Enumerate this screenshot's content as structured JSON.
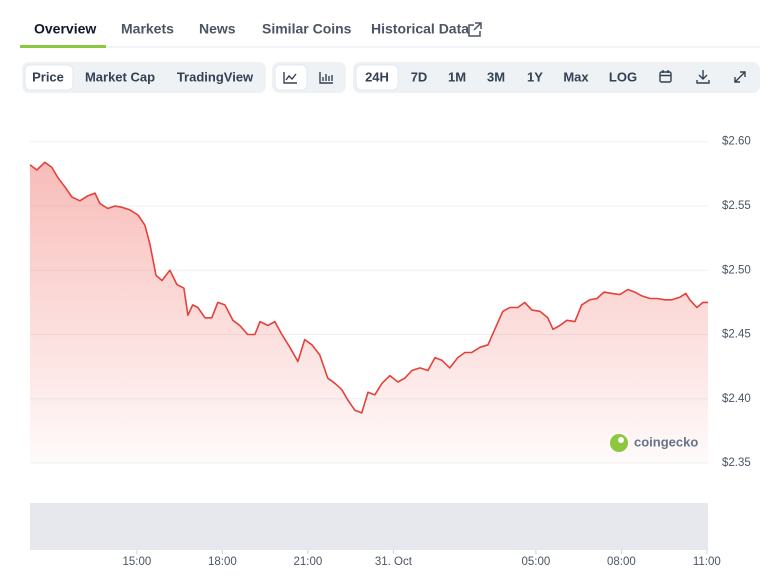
{
  "tabs": [
    "Overview",
    "Markets",
    "News",
    "Similar Coins",
    "Historical Data"
  ],
  "toolbar": {
    "views": [
      "Price",
      "Market Cap",
      "TradingView"
    ],
    "ranges": [
      "24H",
      "7D",
      "1M",
      "3M",
      "1Y",
      "Max",
      "LOG"
    ]
  },
  "chart_data": {
    "type": "area",
    "color": "#e5413a",
    "watermark": "coingecko",
    "x": [
      11.25,
      11.49,
      11.77,
      12.02,
      12.23,
      12.47,
      12.72,
      13.0,
      13.28,
      13.53,
      13.7,
      13.98,
      14.23,
      14.47,
      14.75,
      15.04,
      15.28,
      15.46,
      15.67,
      15.88,
      16.16,
      16.4,
      16.65,
      16.79,
      16.96,
      17.14,
      17.39,
      17.63,
      17.84,
      18.09,
      18.37,
      18.61,
      18.89,
      19.14,
      19.32,
      19.6,
      19.84,
      20.09,
      20.37,
      20.65,
      20.89,
      21.14,
      21.42,
      21.7,
      21.95,
      22.19,
      22.4,
      22.65,
      22.89,
      23.11,
      23.35,
      23.6,
      23.88,
      24.16,
      24.4,
      24.65,
      24.93,
      25.21,
      25.46,
      25.7,
      25.98,
      26.26,
      26.51,
      26.75,
      27.04,
      27.32,
      27.56,
      27.84,
      28.09,
      28.37,
      28.61,
      28.86,
      29.14,
      29.42,
      29.6,
      29.84,
      30.09,
      30.37,
      30.61,
      30.89,
      31.14,
      31.39,
      31.67,
      31.95,
      32.23,
      32.47,
      32.72,
      33.0,
      33.25,
      33.53,
      33.77,
      34.05,
      34.26,
      34.4,
      34.65,
      34.86,
      35.04
    ],
    "values": [
      2.582,
      2.578,
      2.584,
      2.58,
      2.572,
      2.565,
      2.557,
      2.554,
      2.558,
      2.56,
      2.552,
      2.548,
      2.55,
      2.549,
      2.547,
      2.543,
      2.535,
      2.52,
      2.496,
      2.492,
      2.5,
      2.489,
      2.486,
      2.465,
      2.473,
      2.471,
      2.463,
      2.463,
      2.475,
      2.473,
      2.461,
      2.457,
      2.45,
      2.45,
      2.46,
      2.457,
      2.46,
      2.45,
      2.44,
      2.429,
      2.446,
      2.442,
      2.434,
      2.416,
      2.412,
      2.407,
      2.399,
      2.391,
      2.389,
      2.405,
      2.403,
      2.412,
      2.418,
      2.413,
      2.416,
      2.422,
      2.424,
      2.422,
      2.432,
      2.43,
      2.424,
      2.432,
      2.436,
      2.436,
      2.44,
      2.442,
      2.454,
      2.468,
      2.471,
      2.471,
      2.475,
      2.469,
      2.468,
      2.463,
      2.454,
      2.457,
      2.461,
      2.46,
      2.473,
      2.477,
      2.478,
      2.483,
      2.482,
      2.481,
      2.485,
      2.483,
      2.48,
      2.478,
      2.478,
      2.477,
      2.477,
      2.479,
      2.482,
      2.477,
      2.471,
      2.475,
      2.475
    ],
    "xlim": [
      11.25,
      35.04
    ],
    "xticks": [
      {
        "value": 15,
        "label": "15:00"
      },
      {
        "value": 18,
        "label": "18:00"
      },
      {
        "value": 21,
        "label": "21:00"
      },
      {
        "value": 24,
        "label": "31. Oct"
      },
      {
        "value": 29,
        "label": "05:00"
      },
      {
        "value": 32,
        "label": "08:00"
      },
      {
        "value": 35,
        "label": "11:00"
      }
    ],
    "ylim": [
      2.35,
      2.62
    ],
    "yticks": [
      {
        "value": 2.35,
        "label": "$2.35"
      },
      {
        "value": 2.4,
        "label": "$2.40"
      },
      {
        "value": 2.45,
        "label": "$2.45"
      },
      {
        "value": 2.5,
        "label": "$2.50"
      },
      {
        "value": 2.55,
        "label": "$2.55"
      },
      {
        "value": 2.6,
        "label": "$2.60"
      }
    ],
    "grid": true
  }
}
